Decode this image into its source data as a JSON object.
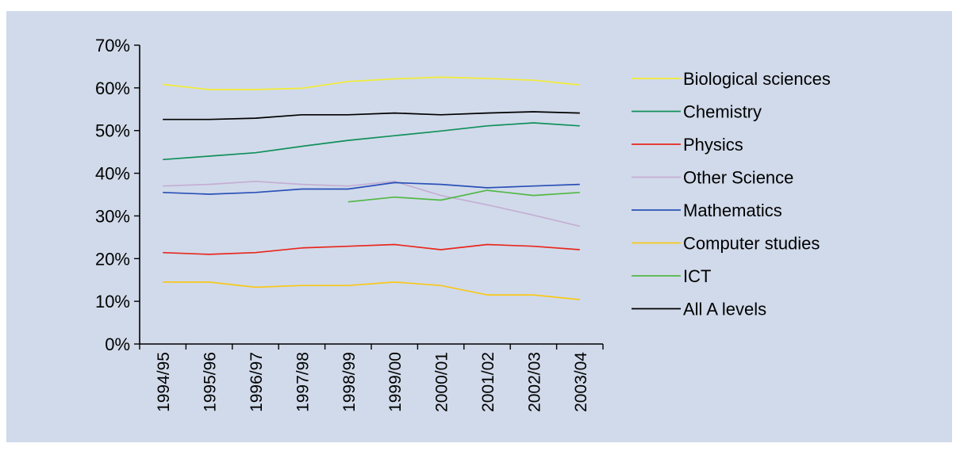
{
  "chart_data": {
    "type": "line",
    "title": "",
    "xlabel": "",
    "ylabel": "",
    "ylim": [
      0,
      70
    ],
    "y_ticks": [
      "0%",
      "10%",
      "20%",
      "30%",
      "40%",
      "50%",
      "60%",
      "70%"
    ],
    "categories": [
      "1994/95",
      "1995/96",
      "1996/97",
      "1997/98",
      "1998/99",
      "1999/00",
      "2000/01",
      "2001/02",
      "2002/03",
      "2003/04"
    ],
    "grid": false,
    "legend_position": "right",
    "series": [
      {
        "name": "Biological sciences",
        "color": "#f2ec34",
        "values": [
          60.8,
          59.6,
          59.6,
          59.9,
          61.5,
          62.1,
          62.5,
          62.2,
          61.8,
          60.7
        ]
      },
      {
        "name": "Chemistry",
        "color": "#10905a",
        "values": [
          43.2,
          44.0,
          44.8,
          46.3,
          47.7,
          48.8,
          49.9,
          51.1,
          51.8,
          51.1
        ]
      },
      {
        "name": "Physics",
        "color": "#e8281e",
        "values": [
          21.4,
          21.0,
          21.4,
          22.5,
          22.9,
          23.3,
          22.1,
          23.3,
          22.9,
          22.1
        ]
      },
      {
        "name": "Other Science",
        "color": "#c4aed4",
        "values": [
          37.0,
          37.4,
          38.1,
          37.4,
          37.0,
          38.1,
          34.8,
          32.6,
          30.2,
          27.6
        ]
      },
      {
        "name": "Mathematics",
        "color": "#2a50b8",
        "values": [
          35.5,
          35.1,
          35.5,
          36.3,
          36.3,
          37.8,
          37.4,
          36.6,
          37.0,
          37.4
        ]
      },
      {
        "name": "Computer studies",
        "color": "#f7c81a",
        "values": [
          14.5,
          14.5,
          13.3,
          13.7,
          13.7,
          14.5,
          13.7,
          11.5,
          11.5,
          10.4
        ]
      },
      {
        "name": "ICT",
        "color": "#52b846",
        "values": [
          null,
          null,
          null,
          null,
          33.3,
          34.4,
          33.7,
          36.0,
          34.8,
          35.5
        ]
      },
      {
        "name": "All A levels",
        "color": "#000000",
        "values": [
          52.6,
          52.6,
          52.9,
          53.7,
          53.7,
          54.1,
          53.7,
          54.1,
          54.4,
          54.1
        ]
      }
    ]
  }
}
